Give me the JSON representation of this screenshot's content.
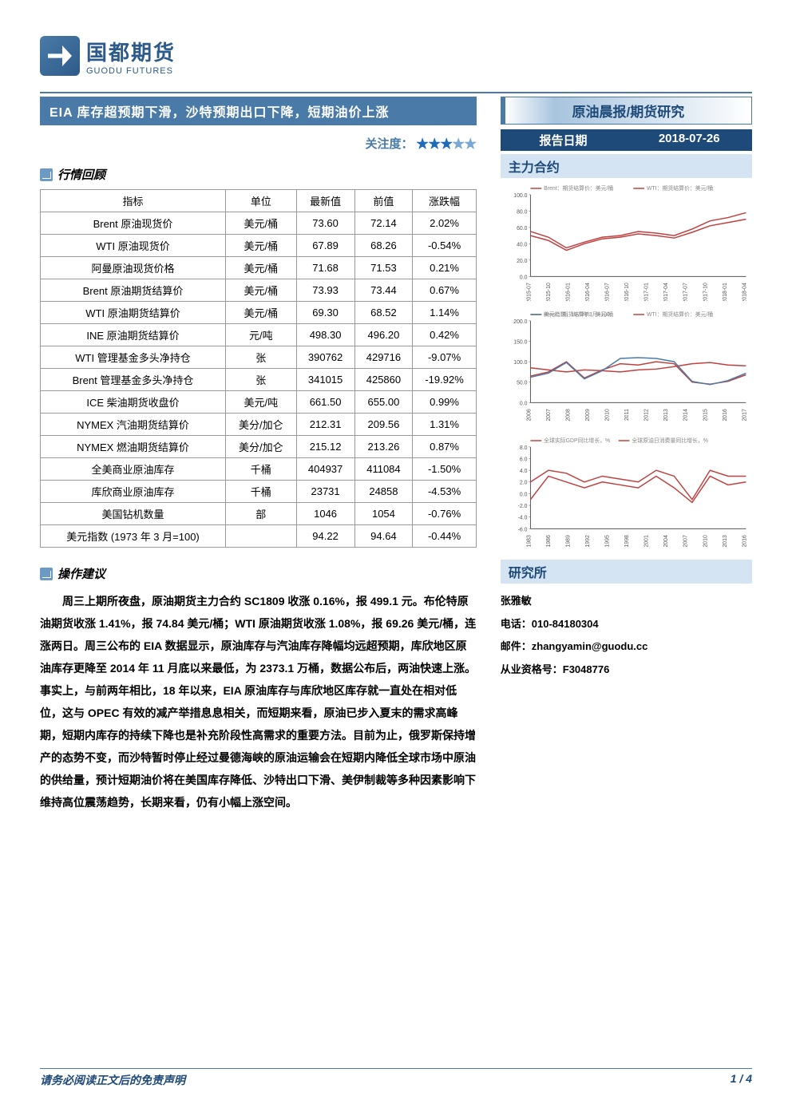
{
  "logo": {
    "cn": "国都期货",
    "en": "GUODU FUTURES"
  },
  "header": {
    "title": "EIA 库存超预期下滑，沙特预期出口下降，短期油价上涨",
    "attention_label": "关注度：",
    "stars_filled": 3,
    "stars_total": 5
  },
  "right": {
    "top_tab": "原油晨报/期货研究",
    "date_label": "报告日期",
    "date_value": "2018-07-26",
    "contracts_tab": "主力合约",
    "research_tab": "研究所",
    "contact": {
      "name": "张雅敏",
      "phone_label": "电话：",
      "phone": "010-84180304",
      "email_label": "邮件：",
      "email": "zhangyamin@guodu.cc",
      "license_label": "从业资格号：",
      "license": "F3048776"
    }
  },
  "sections": {
    "market_review": "行情回顾",
    "advice": "操作建议"
  },
  "table": {
    "columns": [
      "指标",
      "单位",
      "最新值",
      "前值",
      "涨跌幅"
    ],
    "rows": [
      [
        "Brent 原油现货价",
        "美元/桶",
        "73.60",
        "72.14",
        "2.02%"
      ],
      [
        "WTI 原油现货价",
        "美元/桶",
        "67.89",
        "68.26",
        "-0.54%"
      ],
      [
        "阿曼原油现货价格",
        "美元/桶",
        "71.68",
        "71.53",
        "0.21%"
      ],
      [
        "Brent 原油期货结算价",
        "美元/桶",
        "73.93",
        "73.44",
        "0.67%"
      ],
      [
        "WTI 原油期货结算价",
        "美元/桶",
        "69.30",
        "68.52",
        "1.14%"
      ],
      [
        "INE 原油期货结算价",
        "元/吨",
        "498.30",
        "496.20",
        "0.42%"
      ],
      [
        "WTI 管理基金多头净持仓",
        "张",
        "390762",
        "429716",
        "-9.07%"
      ],
      [
        "Brent 管理基金多头净持仓",
        "张",
        "341015",
        "425860",
        "-19.92%"
      ],
      [
        "ICE 柴油期货收盘价",
        "美元/吨",
        "661.50",
        "655.00",
        "0.99%"
      ],
      [
        "NYMEX 汽油期货结算价",
        "美分/加仑",
        "212.31",
        "209.56",
        "1.31%"
      ],
      [
        "NYMEX 燃油期货结算价",
        "美分/加仑",
        "215.12",
        "213.26",
        "0.87%"
      ],
      [
        "全美商业原油库存",
        "千桶",
        "404937",
        "411084",
        "-1.50%"
      ],
      [
        "库欣商业原油库存",
        "千桶",
        "23731",
        "24858",
        "-4.53%"
      ],
      [
        "美国钻机数量",
        "部",
        "1046",
        "1054",
        "-0.76%"
      ],
      [
        "美元指数 (1973 年 3 月=100)",
        "",
        "94.22",
        "94.64",
        "-0.44%"
      ]
    ]
  },
  "advice_text": "周三上期所夜盘，原油期货主力合约 SC1809 收涨 0.16%，报 499.1 元。布伦特原油期货收涨 1.41%，报 74.84 美元/桶；WTI 原油期货收涨 1.08%，报 69.26 美元/桶，连涨两日。周三公布的 EIA 数据显示，原油库存与汽油库存降幅均远超预期，库欣地区原油库存更降至 2014 年 11 月底以来最低，为 2373.1 万桶，数据公布后，两油快速上涨。事实上，与前两年相比，18 年以来，EIA 原油库存与库欣地区库存就一直处在相对低位，这与 OPEC 有效的减产举措息息相关，而短期来看，原油已步入夏末的需求高峰期，短期内库存的持续下降也是补充阶段性高需求的重要方法。目前为止，俄罗斯保持增产的态势不变，而沙特暂时停止经过曼德海峡的原油运输会在短期内降低全球市场中原油的供给量，预计短期油价将在美国库存降低、沙特出口下滑、美伊制裁等多种因素影响下维持高位震荡趋势，长期来看，仍有小幅上涨空间。",
  "footer": {
    "disclaimer": "请务必阅读正文后的免责声明",
    "page": "1 / 4"
  },
  "chart1": {
    "type": "line",
    "legend": [
      "Brent：期货结算价：美元/桶",
      "WTI：期货结算价：美元/桶"
    ],
    "x_labels": [
      "2015-07",
      "2015-10",
      "2016-01",
      "2016-04",
      "2016-07",
      "2016-10",
      "2017-01",
      "2017-04",
      "2017-07",
      "2017-10",
      "2018-01",
      "2018-04"
    ],
    "ylim": [
      0,
      100
    ],
    "ytick_step": 20,
    "series": [
      {
        "color": "#c04040",
        "values": [
          55,
          48,
          35,
          42,
          48,
          50,
          55,
          53,
          50,
          58,
          68,
          72,
          78
        ]
      },
      {
        "color": "#c04040",
        "values": [
          50,
          44,
          32,
          40,
          46,
          48,
          52,
          50,
          47,
          54,
          62,
          66,
          70
        ]
      }
    ],
    "background": "#ffffff",
    "axis_fontsize": 7
  },
  "chart2": {
    "type": "line",
    "legend": [
      "美元指数，1973年3月=100",
      "WTI：期货结算价：美元/桶",
      "Brent：期货结算价：美元/桶"
    ],
    "x_labels": [
      "2006",
      "2007",
      "2008",
      "2009",
      "2010",
      "2011",
      "2012",
      "2013",
      "2014",
      "2015",
      "2016",
      "2017"
    ],
    "ylim": [
      0,
      200
    ],
    "ytick_step": 50,
    "series": [
      {
        "color": "#c04040",
        "values": [
          85,
          80,
          75,
          80,
          78,
          75,
          80,
          82,
          88,
          95,
          98,
          92,
          90
        ]
      },
      {
        "color": "#c04040",
        "values": [
          65,
          75,
          100,
          60,
          80,
          95,
          92,
          100,
          95,
          50,
          45,
          52,
          68
        ]
      },
      {
        "color": "#4a7ba8",
        "values": [
          62,
          72,
          98,
          58,
          78,
          108,
          110,
          108,
          100,
          52,
          44,
          54,
          72
        ]
      }
    ],
    "background": "#ffffff",
    "axis_fontsize": 7
  },
  "chart3": {
    "type": "line",
    "legend": [
      "全球实际GDP同比增长，%",
      "全球原油日消费量同比增长，%"
    ],
    "x_labels": [
      "1983",
      "1986",
      "1989",
      "1992",
      "1995",
      "1998",
      "2001",
      "2004",
      "2007",
      "2010",
      "2013",
      "2016"
    ],
    "ylim": [
      -6,
      8
    ],
    "ytick_step": 2,
    "series": [
      {
        "color": "#c04040",
        "values": [
          2,
          4,
          3.5,
          2,
          3,
          2.5,
          2,
          4,
          3,
          -1,
          4,
          3,
          3
        ]
      },
      {
        "color": "#c04040",
        "values": [
          -1,
          3,
          2,
          1,
          2,
          1.5,
          1,
          3,
          1,
          -1.5,
          3,
          1.5,
          2
        ]
      }
    ],
    "background": "#ffffff",
    "axis_fontsize": 7
  }
}
